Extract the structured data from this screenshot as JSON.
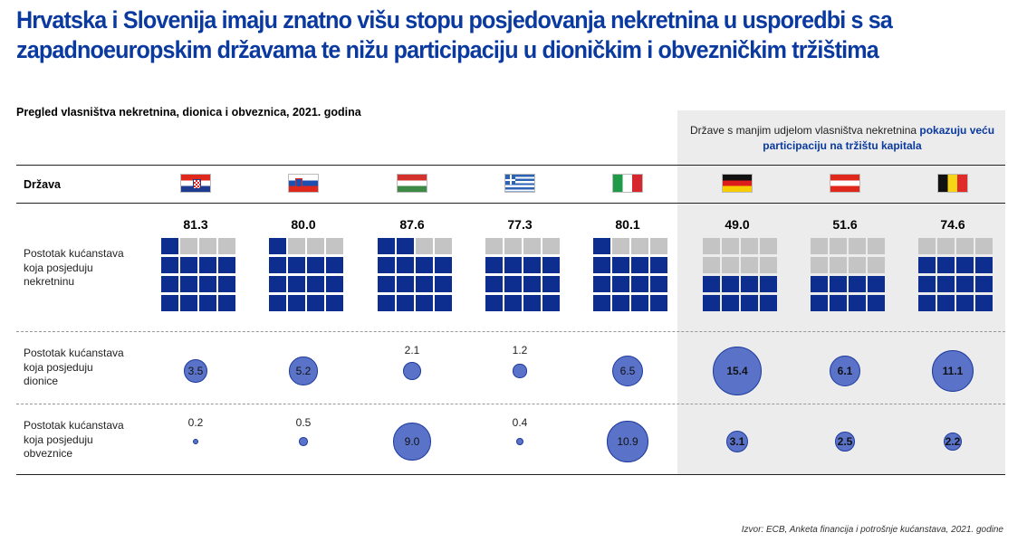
{
  "headline": {
    "line1": "Hrvatska i Slovenija imaju znatno višu stopu posjedovanja nekretnina u usporedbi s sa",
    "line2": "zapadnoeuropskim državama te nižu participaciju u dioničkim i obvezničkim tržištima"
  },
  "subtitle": "Pregled vlasništva nekretnina, dionica i obveznica, 2021. godina",
  "highlight_note": {
    "plain": "Države s manjim udjelom vlasništva nekretnina ",
    "accent": "pokazuju veću participaciju na tržištu kapitala"
  },
  "header_label": "Država",
  "row_labels": {
    "real_estate": [
      "Postotak kućanstava",
      "koja posjeduju",
      "nekretninu"
    ],
    "stocks": [
      "Postotak kućanstava",
      "koja posjeduju",
      "dionice"
    ],
    "bonds": [
      "Postotak kućanstava",
      "koja posjeduju",
      "obveznice"
    ]
  },
  "colors": {
    "navy": "#0d2e8f",
    "grey_cell": "#c4c4c4",
    "bubble_fill": "#5a73c8",
    "bubble_stroke": "#1d3a9c",
    "headline": "#0a3aa0",
    "panel": "#ececec"
  },
  "source": "Izvor: ECB, Anketa financija i potrošnje kućanstava, 2021. godine",
  "chart_data": {
    "type": "table",
    "countries": [
      {
        "flag": "croatia-flag-icon",
        "real_estate": "81.3",
        "stocks": "3.5",
        "bonds": "0.2",
        "highlighted": false
      },
      {
        "flag": "slovenia-flag-icon",
        "real_estate": "80.0",
        "stocks": "5.2",
        "bonds": "0.5",
        "highlighted": false
      },
      {
        "flag": "hungary-flag-icon",
        "real_estate": "87.6",
        "stocks": "2.1",
        "bonds": "9.0",
        "highlighted": false
      },
      {
        "flag": "greece-flag-icon",
        "real_estate": "77.3",
        "stocks": "1.2",
        "bonds": "0.4",
        "highlighted": false
      },
      {
        "flag": "italy-flag-icon",
        "real_estate": "80.1",
        "stocks": "6.5",
        "bonds": "10.9",
        "highlighted": false
      },
      {
        "flag": "germany-flag-icon",
        "real_estate": "49.0",
        "stocks": "15.4",
        "bonds": "3.1",
        "highlighted": true
      },
      {
        "flag": "austria-flag-icon",
        "real_estate": "51.6",
        "stocks": "6.1",
        "bonds": "2.5",
        "highlighted": true
      },
      {
        "flag": "belgium-flag-icon",
        "real_estate": "74.6",
        "stocks": "11.1",
        "bonds": "2.2",
        "highlighted": true
      }
    ]
  }
}
